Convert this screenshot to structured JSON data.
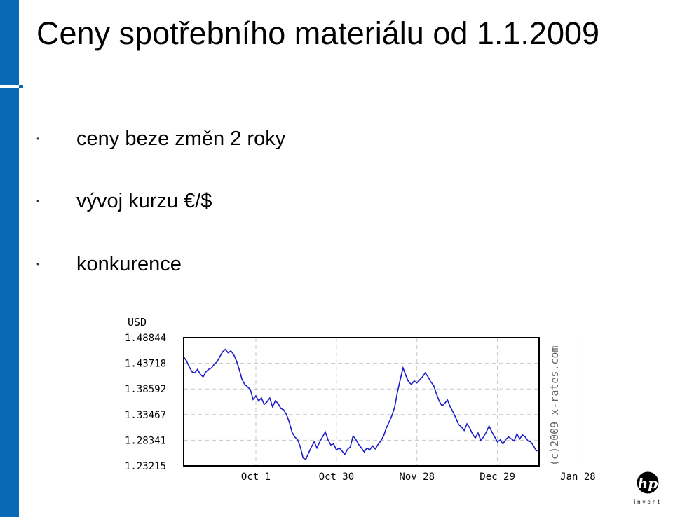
{
  "slide": {
    "title": "Ceny spotřebního materiálu od 1.1.2009",
    "bullets": [
      {
        "text": "ceny beze změn 2 roky"
      },
      {
        "text": "vývoj kurzu €/$"
      },
      {
        "text": "konkurence"
      }
    ],
    "bullet_glyph": "•",
    "accent_color": "#0a69b4"
  },
  "logo": {
    "brand": "hp",
    "tagline": "invent"
  },
  "chart_data": {
    "type": "line",
    "unit_label": "USD",
    "watermark": "(c)2009 x-rates.com",
    "ylim": [
      1.23215,
      1.48844
    ],
    "y_ticks": [
      "1.48844",
      "1.43718",
      "1.38592",
      "1.33467",
      "1.28341",
      "1.23215"
    ],
    "x_ticks": [
      "Oct 1",
      "Oct 30",
      "Nov 28",
      "Dec 29",
      "Jan 28"
    ],
    "x_tick_index": [
      26,
      55,
      84,
      113,
      142
    ],
    "series_color": "#1c1cc8",
    "series": [
      {
        "values": [
          1.45,
          1.442,
          1.43,
          1.42,
          1.418,
          1.425,
          1.415,
          1.41,
          1.42,
          1.425,
          1.428,
          1.435,
          1.44,
          1.45,
          1.46,
          1.465,
          1.458,
          1.462,
          1.455,
          1.442,
          1.425,
          1.405,
          1.395,
          1.39,
          1.385,
          1.365,
          1.372,
          1.362,
          1.368,
          1.355,
          1.36,
          1.368,
          1.35,
          1.362,
          1.357,
          1.347,
          1.344,
          1.335,
          1.32,
          1.3,
          1.29,
          1.285,
          1.27,
          1.248,
          1.245,
          1.258,
          1.27,
          1.28,
          1.268,
          1.28,
          1.29,
          1.3,
          1.284,
          1.274,
          1.276,
          1.264,
          1.268,
          1.262,
          1.255,
          1.265,
          1.27,
          1.292,
          1.285,
          1.275,
          1.268,
          1.26,
          1.268,
          1.264,
          1.272,
          1.266,
          1.275,
          1.282,
          1.292,
          1.308,
          1.32,
          1.333,
          1.35,
          1.38,
          1.405,
          1.428,
          1.413,
          1.4,
          1.395,
          1.402,
          1.398,
          1.404,
          1.41,
          1.418,
          1.41,
          1.4,
          1.393,
          1.377,
          1.362,
          1.352,
          1.357,
          1.364,
          1.35,
          1.34,
          1.328,
          1.315,
          1.31,
          1.303,
          1.316,
          1.308,
          1.296,
          1.288,
          1.298,
          1.283,
          1.29,
          1.3,
          1.312,
          1.3,
          1.29,
          1.28,
          1.284,
          1.276,
          1.285,
          1.29,
          1.286,
          1.282,
          1.296,
          1.286,
          1.294,
          1.29,
          1.282,
          1.28,
          1.272,
          1.262,
          1.264
        ]
      }
    ]
  }
}
